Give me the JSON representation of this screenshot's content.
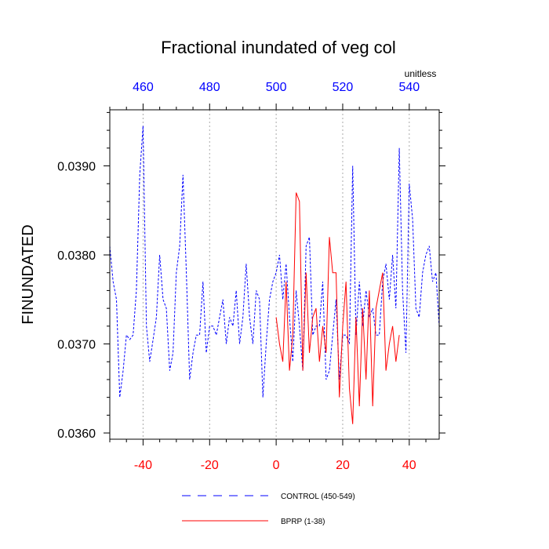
{
  "chart_data": {
    "type": "line",
    "title": "Fractional inundated of veg col",
    "ylabel": "FINUNDATED",
    "units_label": "unitless",
    "xlim": [
      -50,
      49
    ],
    "ylim": [
      0.03593,
      0.03963
    ],
    "bottom_axis": {
      "ticks": [
        -40,
        -20,
        0,
        20,
        40
      ],
      "labels": [
        "-40",
        "-20",
        "0",
        "20",
        "40"
      ],
      "color": "#ff0000"
    },
    "top_axis": {
      "ticks": [
        -40,
        -20,
        0,
        20,
        40
      ],
      "labels": [
        "460",
        "480",
        "500",
        "520",
        "540"
      ],
      "color": "#0000ff"
    },
    "y_ticks": [
      0.036,
      0.037,
      0.038,
      0.039
    ],
    "y_tick_labels": [
      "0.0360",
      "0.0370",
      "0.0380",
      "0.0390"
    ],
    "grid": "vertical dotted at labeled x ticks",
    "legend_position": "bottom",
    "series": [
      {
        "name": "CONTROL (450-549)",
        "color": "#0000ff",
        "dash": "dashed",
        "x": [
          -50,
          -49,
          -48,
          -47,
          -46,
          -45,
          -44,
          -43,
          -42,
          -41,
          -40,
          -39,
          -38,
          -37,
          -36,
          -35,
          -34,
          -33,
          -32,
          -31,
          -30,
          -29,
          -28,
          -27,
          -26,
          -25,
          -24,
          -23,
          -22,
          -21,
          -20,
          -19,
          -18,
          -17,
          -16,
          -15,
          -14,
          -13,
          -12,
          -11,
          -10,
          -9,
          -8,
          -7,
          -6,
          -5,
          -4,
          -3,
          -2,
          -1,
          0,
          1,
          2,
          3,
          4,
          5,
          6,
          7,
          8,
          9,
          10,
          11,
          12,
          13,
          14,
          15,
          16,
          17,
          18,
          19,
          20,
          21,
          22,
          23,
          24,
          25,
          26,
          27,
          28,
          29,
          30,
          31,
          32,
          33,
          34,
          35,
          36,
          37,
          38,
          39,
          40,
          41,
          42,
          43,
          44,
          45,
          46,
          47,
          48,
          49
        ],
        "values": [
          0.0381,
          0.0377,
          0.0375,
          0.0364,
          0.0367,
          0.0371,
          0.03705,
          0.0371,
          0.0376,
          0.0389,
          0.03945,
          0.0372,
          0.0368,
          0.03705,
          0.0373,
          0.038,
          0.0375,
          0.0374,
          0.0367,
          0.0369,
          0.0378,
          0.0381,
          0.0389,
          0.0378,
          0.0366,
          0.0369,
          0.0371,
          0.0371,
          0.0377,
          0.0369,
          0.0372,
          0.0372,
          0.0371,
          0.0373,
          0.0375,
          0.037,
          0.0373,
          0.0372,
          0.0376,
          0.037,
          0.0373,
          0.0379,
          0.0373,
          0.037,
          0.0376,
          0.0375,
          0.0364,
          0.037,
          0.0375,
          0.0377,
          0.0378,
          0.038,
          0.0375,
          0.0379,
          0.0373,
          0.0368,
          0.0376,
          0.0372,
          0.0367,
          0.0381,
          0.0382,
          0.0371,
          0.0372,
          0.0372,
          0.0377,
          0.0366,
          0.0367,
          0.0371,
          0.0375,
          0.0366,
          0.0371,
          0.0371,
          0.037,
          0.039,
          0.0371,
          0.0377,
          0.0372,
          0.0376,
          0.0373,
          0.0374,
          0.0371,
          0.0371,
          0.0377,
          0.0379,
          0.0375,
          0.038,
          0.0374,
          0.0392,
          0.0376,
          0.0369,
          0.0388,
          0.0384,
          0.0374,
          0.0373,
          0.0378,
          0.038,
          0.0381,
          0.0377,
          0.0378,
          0.0372
        ]
      },
      {
        "name": "BPRP (1-38)",
        "color": "#ff0000",
        "dash": "solid",
        "x": [
          0,
          1,
          2,
          3,
          4,
          5,
          6,
          7,
          8,
          9,
          10,
          11,
          12,
          13,
          14,
          15,
          16,
          17,
          18,
          19,
          20,
          21,
          22,
          23,
          24,
          25,
          26,
          27,
          28,
          29,
          30,
          31,
          32,
          33,
          34,
          35,
          36,
          37
        ],
        "values": [
          0.0373,
          0.037,
          0.0368,
          0.0377,
          0.0367,
          0.0371,
          0.0387,
          0.0386,
          0.0367,
          0.0378,
          0.0369,
          0.0373,
          0.0374,
          0.0368,
          0.0372,
          0.0369,
          0.0382,
          0.0378,
          0.0378,
          0.0364,
          0.0372,
          0.0377,
          0.0365,
          0.0361,
          0.0373,
          0.0363,
          0.0374,
          0.0366,
          0.0376,
          0.0363,
          0.0374,
          0.0376,
          0.0378,
          0.0367,
          0.037,
          0.0372,
          0.0368,
          0.0371
        ]
      }
    ]
  }
}
